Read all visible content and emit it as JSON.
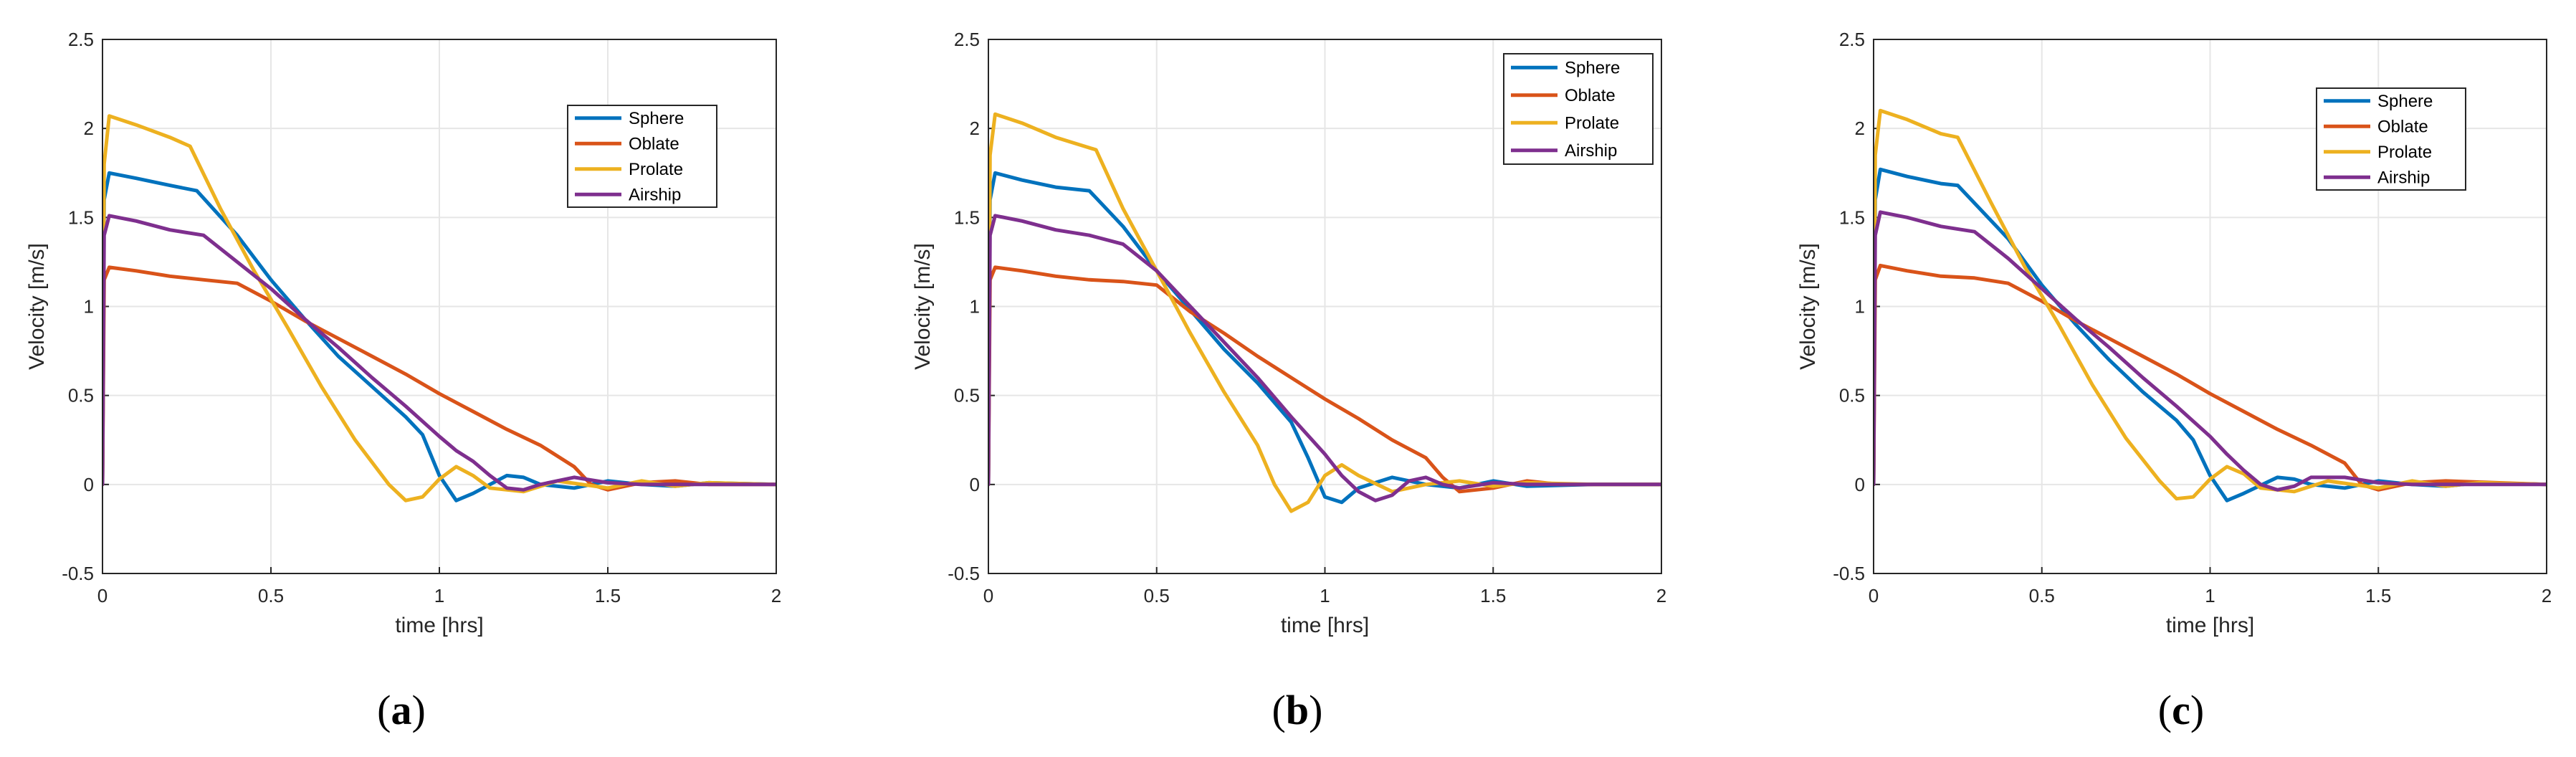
{
  "figure": {
    "captions": [
      {
        "open": "(",
        "letter": "a",
        "close": ")"
      },
      {
        "open": "(",
        "letter": "b",
        "close": ")"
      },
      {
        "open": "(",
        "letter": "c",
        "close": ")"
      }
    ]
  },
  "colors": {
    "Sphere": "#0072BD",
    "Oblate": "#D95319",
    "Prolate": "#EDB120",
    "Airship": "#7E2F8E",
    "axis": "#262626",
    "grid": "#e6e6e6"
  },
  "chart_data": [
    {
      "type": "line",
      "panel": "a",
      "xlabel": "time [hrs]",
      "ylabel": "Velocity [m/s]",
      "xlim": [
        0,
        2
      ],
      "ylim": [
        -0.5,
        2.5
      ],
      "xticks": [
        "0",
        "0.5",
        "1",
        "1.5",
        "2"
      ],
      "yticks": [
        "-0.5",
        "0",
        "0.5",
        "1",
        "1.5",
        "2",
        "2.5"
      ],
      "grid": true,
      "legend": "top-right",
      "legend_entries": [
        "Sphere",
        "Oblate",
        "Prolate",
        "Airship"
      ],
      "series": [
        {
          "name": "Sphere",
          "x": [
            0,
            0.005,
            0.02,
            0.1,
            0.2,
            0.28,
            0.4,
            0.5,
            0.6,
            0.7,
            0.8,
            0.9,
            0.95,
            1.0,
            1.05,
            1.1,
            1.2,
            1.25,
            1.3,
            1.4,
            1.5,
            1.6,
            1.7,
            1.8,
            2.0
          ],
          "y": [
            0,
            1.6,
            1.75,
            1.72,
            1.68,
            1.65,
            1.4,
            1.15,
            0.93,
            0.72,
            0.55,
            0.38,
            0.28,
            0.05,
            -0.09,
            -0.05,
            0.05,
            0.04,
            0.0,
            -0.02,
            0.02,
            0.0,
            -0.01,
            0.01,
            0.0
          ]
        },
        {
          "name": "Oblate",
          "x": [
            0,
            0.005,
            0.02,
            0.1,
            0.2,
            0.3,
            0.4,
            0.5,
            0.6,
            0.7,
            0.8,
            0.9,
            1.0,
            1.1,
            1.2,
            1.3,
            1.4,
            1.45,
            1.5,
            1.6,
            1.7,
            1.8,
            2.0
          ],
          "y": [
            0,
            1.15,
            1.22,
            1.2,
            1.17,
            1.15,
            1.13,
            1.03,
            0.92,
            0.82,
            0.72,
            0.62,
            0.51,
            0.41,
            0.31,
            0.22,
            0.1,
            0.0,
            -0.03,
            0.01,
            0.02,
            0.0,
            0.0
          ]
        },
        {
          "name": "Prolate",
          "x": [
            0,
            0.005,
            0.02,
            0.1,
            0.2,
            0.26,
            0.35,
            0.45,
            0.55,
            0.65,
            0.75,
            0.85,
            0.9,
            0.95,
            1.0,
            1.05,
            1.1,
            1.15,
            1.25,
            1.35,
            1.5,
            1.6,
            1.7,
            1.8,
            2.0
          ],
          "y": [
            0,
            1.8,
            2.07,
            2.02,
            1.95,
            1.9,
            1.55,
            1.2,
            0.88,
            0.55,
            0.25,
            0.0,
            -0.09,
            -0.07,
            0.03,
            0.1,
            0.05,
            -0.02,
            -0.04,
            0.02,
            -0.02,
            0.02,
            -0.01,
            0.01,
            0.0
          ]
        },
        {
          "name": "Airship",
          "x": [
            0,
            0.005,
            0.02,
            0.1,
            0.2,
            0.3,
            0.4,
            0.5,
            0.6,
            0.7,
            0.8,
            0.9,
            1.0,
            1.05,
            1.1,
            1.15,
            1.2,
            1.25,
            1.3,
            1.4,
            1.5,
            1.6,
            2.0
          ],
          "y": [
            0,
            1.4,
            1.51,
            1.48,
            1.43,
            1.4,
            1.25,
            1.1,
            0.93,
            0.77,
            0.6,
            0.44,
            0.27,
            0.19,
            0.13,
            0.05,
            -0.02,
            -0.03,
            0.0,
            0.04,
            0.01,
            0.0,
            0.0
          ]
        }
      ]
    },
    {
      "type": "line",
      "panel": "b",
      "xlabel": "time [hrs]",
      "ylabel": "Velocity [m/s]",
      "xlim": [
        0,
        2
      ],
      "ylim": [
        -0.5,
        2.5
      ],
      "xticks": [
        "0",
        "0.5",
        "1",
        "1.5",
        "2"
      ],
      "yticks": [
        "-0.5",
        "0",
        "0.5",
        "1",
        "1.5",
        "2",
        "2.5"
      ],
      "grid": true,
      "legend": "top-right",
      "legend_entries": [
        "Sphere",
        "Oblate",
        "Prolate",
        "Airship"
      ],
      "series": [
        {
          "name": "Sphere",
          "x": [
            0,
            0.005,
            0.02,
            0.1,
            0.2,
            0.3,
            0.4,
            0.5,
            0.6,
            0.7,
            0.8,
            0.9,
            0.95,
            1.0,
            1.05,
            1.1,
            1.2,
            1.3,
            1.4,
            1.5,
            1.6,
            1.8,
            2.0
          ],
          "y": [
            0,
            1.6,
            1.75,
            1.71,
            1.67,
            1.65,
            1.45,
            1.2,
            0.98,
            0.76,
            0.57,
            0.35,
            0.15,
            -0.07,
            -0.1,
            -0.02,
            0.04,
            0.0,
            -0.02,
            0.02,
            -0.01,
            0.0,
            0.0
          ]
        },
        {
          "name": "Oblate",
          "x": [
            0,
            0.005,
            0.02,
            0.1,
            0.2,
            0.3,
            0.4,
            0.5,
            0.6,
            0.7,
            0.8,
            0.9,
            1.0,
            1.1,
            1.2,
            1.3,
            1.35,
            1.4,
            1.5,
            1.6,
            1.7,
            2.0
          ],
          "y": [
            0,
            1.15,
            1.22,
            1.2,
            1.17,
            1.15,
            1.14,
            1.12,
            0.97,
            0.85,
            0.72,
            0.6,
            0.48,
            0.37,
            0.25,
            0.15,
            0.04,
            -0.04,
            -0.02,
            0.02,
            0.0,
            0.0
          ]
        },
        {
          "name": "Prolate",
          "x": [
            0,
            0.005,
            0.02,
            0.1,
            0.2,
            0.32,
            0.4,
            0.5,
            0.6,
            0.7,
            0.8,
            0.85,
            0.9,
            0.95,
            1.0,
            1.05,
            1.1,
            1.2,
            1.3,
            1.4,
            1.5,
            1.6,
            1.8,
            2.0
          ],
          "y": [
            0,
            1.85,
            2.08,
            2.03,
            1.95,
            1.88,
            1.55,
            1.2,
            0.85,
            0.52,
            0.22,
            0.0,
            -0.15,
            -0.1,
            0.05,
            0.11,
            0.05,
            -0.04,
            0.0,
            0.02,
            -0.01,
            0.01,
            0.0,
            0.0
          ]
        },
        {
          "name": "Airship",
          "x": [
            0,
            0.005,
            0.02,
            0.1,
            0.2,
            0.3,
            0.4,
            0.5,
            0.6,
            0.7,
            0.8,
            0.9,
            1.0,
            1.05,
            1.1,
            1.15,
            1.2,
            1.25,
            1.3,
            1.35,
            1.4,
            1.5,
            1.6,
            2.0
          ],
          "y": [
            0,
            1.4,
            1.51,
            1.48,
            1.43,
            1.4,
            1.35,
            1.2,
            1.0,
            0.8,
            0.6,
            0.38,
            0.17,
            0.05,
            -0.04,
            -0.09,
            -0.06,
            0.02,
            0.04,
            0.0,
            -0.02,
            0.01,
            0.0,
            0.0
          ]
        }
      ]
    },
    {
      "type": "line",
      "panel": "c",
      "xlabel": "time [hrs]",
      "ylabel": "Velocity [m/s]",
      "xlim": [
        0,
        2
      ],
      "ylim": [
        -0.5,
        2.5
      ],
      "xticks": [
        "0",
        "0.5",
        "1",
        "1.5",
        "2"
      ],
      "yticks": [
        "-0.5",
        "0",
        "0.5",
        "1",
        "1.5",
        "2",
        "2.5"
      ],
      "grid": true,
      "legend": "top-right",
      "legend_entries": [
        "Sphere",
        "Oblate",
        "Prolate",
        "Airship"
      ],
      "series": [
        {
          "name": "Sphere",
          "x": [
            0,
            0.005,
            0.02,
            0.1,
            0.2,
            0.25,
            0.4,
            0.5,
            0.6,
            0.7,
            0.8,
            0.9,
            0.95,
            1.0,
            1.05,
            1.1,
            1.2,
            1.25,
            1.3,
            1.4,
            1.5,
            1.6,
            1.7,
            1.8,
            2.0
          ],
          "y": [
            0,
            1.6,
            1.77,
            1.73,
            1.69,
            1.68,
            1.38,
            1.12,
            0.9,
            0.7,
            0.52,
            0.36,
            0.25,
            0.05,
            -0.09,
            -0.05,
            0.04,
            0.03,
            0.0,
            -0.02,
            0.02,
            0.0,
            -0.01,
            0.01,
            0.0
          ]
        },
        {
          "name": "Oblate",
          "x": [
            0,
            0.005,
            0.02,
            0.1,
            0.2,
            0.3,
            0.4,
            0.5,
            0.6,
            0.7,
            0.8,
            0.9,
            1.0,
            1.1,
            1.2,
            1.3,
            1.4,
            1.45,
            1.5,
            1.6,
            1.7,
            2.0
          ],
          "y": [
            0,
            1.15,
            1.23,
            1.2,
            1.17,
            1.16,
            1.13,
            1.03,
            0.92,
            0.82,
            0.72,
            0.62,
            0.51,
            0.41,
            0.31,
            0.22,
            0.12,
            0.0,
            -0.03,
            0.01,
            0.02,
            0.0
          ]
        },
        {
          "name": "Prolate",
          "x": [
            0,
            0.005,
            0.02,
            0.1,
            0.2,
            0.25,
            0.35,
            0.45,
            0.55,
            0.65,
            0.75,
            0.85,
            0.9,
            0.95,
            1.0,
            1.05,
            1.1,
            1.15,
            1.25,
            1.35,
            1.5,
            1.6,
            1.7,
            1.8,
            2.0
          ],
          "y": [
            0,
            1.85,
            2.1,
            2.05,
            1.97,
            1.95,
            1.58,
            1.22,
            0.9,
            0.56,
            0.26,
            0.02,
            -0.08,
            -0.07,
            0.03,
            0.1,
            0.06,
            -0.02,
            -0.04,
            0.02,
            -0.02,
            0.02,
            -0.01,
            0.01,
            0.0
          ]
        },
        {
          "name": "Airship",
          "x": [
            0,
            0.005,
            0.02,
            0.1,
            0.2,
            0.3,
            0.4,
            0.5,
            0.6,
            0.7,
            0.8,
            0.9,
            1.0,
            1.05,
            1.1,
            1.15,
            1.2,
            1.25,
            1.3,
            1.4,
            1.5,
            1.6,
            2.0
          ],
          "y": [
            0,
            1.4,
            1.53,
            1.5,
            1.45,
            1.42,
            1.27,
            1.1,
            0.93,
            0.77,
            0.6,
            0.44,
            0.27,
            0.17,
            0.08,
            0.0,
            -0.03,
            -0.01,
            0.04,
            0.04,
            0.01,
            0.0,
            0.0
          ]
        }
      ]
    }
  ]
}
